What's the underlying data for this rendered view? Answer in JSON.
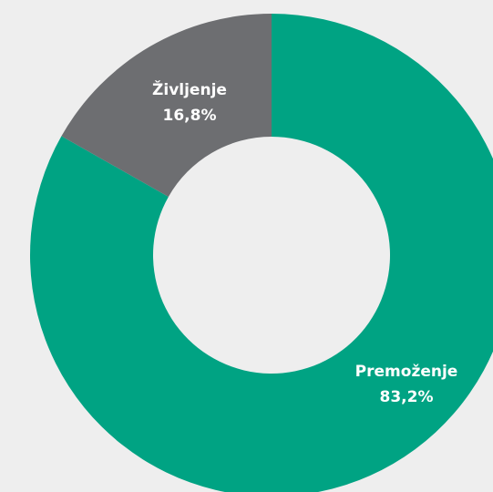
{
  "chart_data": {
    "type": "donut",
    "categories": [
      "Premoženje",
      "Življenje"
    ],
    "values": [
      83.2,
      16.8
    ],
    "value_labels": [
      "83,2%",
      "16,8%"
    ],
    "colors": [
      "#00a383",
      "#6d6e71"
    ]
  }
}
